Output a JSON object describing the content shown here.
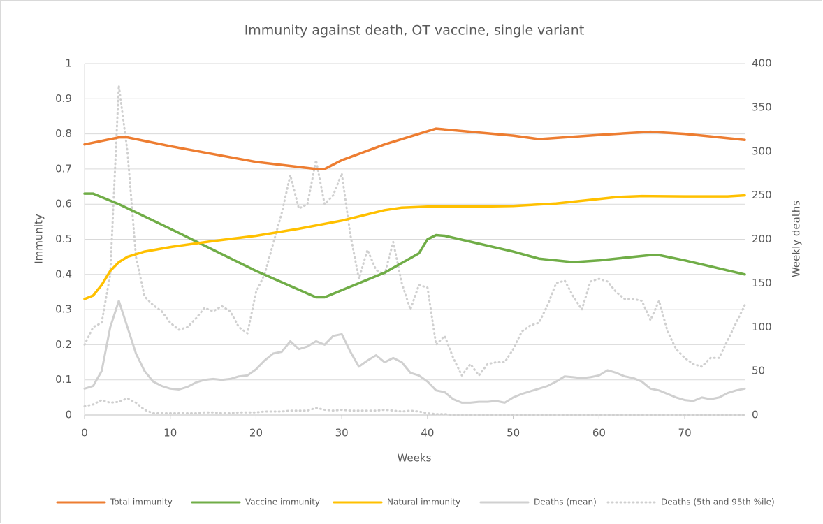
{
  "chart_data": {
    "type": "line",
    "title": "Immunity against death, OT vaccine, single variant",
    "xlabel": "Weeks",
    "ylabel": "Immunity",
    "y2label": "Weekly deaths",
    "xlim": [
      0,
      77
    ],
    "xticks": [
      0,
      10,
      20,
      30,
      40,
      50,
      60,
      70
    ],
    "ylim": [
      0,
      1
    ],
    "yticks": [
      0,
      0.1,
      0.2,
      0.3,
      0.4,
      0.5,
      0.6,
      0.7,
      0.8,
      0.9,
      1
    ],
    "y2lim": [
      0,
      400
    ],
    "y2ticks": [
      0,
      50,
      100,
      150,
      200,
      250,
      300,
      350,
      400
    ],
    "grid": true,
    "legend": "bottom",
    "x": [
      0,
      1,
      2,
      3,
      4,
      5,
      6,
      7,
      8,
      9,
      10,
      11,
      12,
      13,
      14,
      15,
      16,
      17,
      18,
      19,
      20,
      21,
      22,
      23,
      24,
      25,
      26,
      27,
      28,
      29,
      30,
      31,
      32,
      33,
      34,
      35,
      36,
      37,
      38,
      39,
      40,
      41,
      42,
      43,
      44,
      45,
      46,
      47,
      48,
      49,
      50,
      51,
      52,
      53,
      54,
      55,
      56,
      57,
      58,
      59,
      60,
      61,
      62,
      63,
      64,
      65,
      66,
      67,
      68,
      69,
      70,
      71,
      72,
      73,
      74,
      75,
      76,
      77
    ],
    "series": [
      {
        "name": "Total immunity",
        "color": "#ed7d31",
        "x": [
          0,
          2,
          4,
          5,
          10,
          20,
          27,
          28,
          30,
          35,
          39,
          41,
          50,
          53,
          60,
          66,
          70,
          77
        ],
        "values": [
          0.77,
          0.78,
          0.79,
          0.79,
          0.765,
          0.72,
          0.7,
          0.7,
          0.725,
          0.77,
          0.8,
          0.815,
          0.795,
          0.785,
          0.797,
          0.806,
          0.8,
          0.783
        ]
      },
      {
        "name": "Vaccine immunity",
        "color": "#70ad47",
        "x": [
          0,
          1,
          2,
          4,
          10,
          20,
          27,
          28,
          30,
          35,
          39,
          40,
          41,
          42,
          50,
          53,
          57,
          60,
          66,
          67,
          70,
          77
        ],
        "values": [
          0.63,
          0.63,
          0.62,
          0.6,
          0.53,
          0.41,
          0.335,
          0.335,
          0.355,
          0.405,
          0.46,
          0.5,
          0.512,
          0.51,
          0.465,
          0.445,
          0.435,
          0.44,
          0.455,
          0.455,
          0.44,
          0.4
        ]
      },
      {
        "name": "Natural immunity",
        "color": "#ffc000",
        "x": [
          0,
          1,
          2,
          3,
          4,
          5,
          7,
          10,
          15,
          20,
          25,
          30,
          32,
          35,
          37,
          40,
          45,
          50,
          55,
          60,
          62,
          65,
          70,
          75,
          77
        ],
        "values": [
          0.33,
          0.34,
          0.37,
          0.41,
          0.435,
          0.45,
          0.465,
          0.478,
          0.495,
          0.51,
          0.53,
          0.553,
          0.565,
          0.583,
          0.59,
          0.593,
          0.593,
          0.595,
          0.602,
          0.615,
          0.62,
          0.623,
          0.622,
          0.622,
          0.625
        ]
      },
      {
        "name": "Deaths (mean)",
        "color": "#d0d0d0",
        "axis": "y2",
        "values": [
          30,
          33,
          50,
          100,
          130,
          100,
          70,
          50,
          38,
          33,
          30,
          29,
          32,
          37,
          40,
          41,
          40,
          41,
          44,
          45,
          52,
          62,
          70,
          72,
          84,
          75,
          78,
          84,
          80,
          90,
          92,
          72,
          55,
          62,
          68,
          60,
          65,
          60,
          48,
          45,
          38,
          28,
          26,
          18,
          14,
          14,
          15,
          15,
          16,
          14,
          20,
          24,
          27,
          30,
          33,
          38,
          44,
          43,
          42,
          43,
          45,
          51,
          48,
          44,
          42,
          38,
          30,
          28,
          24,
          20,
          17,
          16,
          20,
          18,
          20,
          25,
          28,
          30
        ]
      },
      {
        "name": "Deaths (5th and 95th %ile)",
        "color": "#d0d0d0",
        "axis": "y2",
        "dash": true,
        "upper": [
          80,
          100,
          105,
          160,
          375,
          300,
          180,
          135,
          125,
          118,
          105,
          97,
          100,
          110,
          122,
          118,
          124,
          118,
          100,
          93,
          140,
          160,
          195,
          230,
          273,
          235,
          240,
          290,
          240,
          250,
          275,
          205,
          155,
          188,
          165,
          160,
          197,
          150,
          120,
          148,
          145,
          80,
          90,
          65,
          45,
          58,
          45,
          58,
          60,
          60,
          75,
          95,
          102,
          105,
          125,
          150,
          153,
          135,
          120,
          152,
          155,
          152,
          140,
          132,
          132,
          130,
          108,
          130,
          95,
          75,
          65,
          58,
          55,
          65,
          65,
          85,
          105,
          125
        ],
        "lower": [
          10,
          12,
          17,
          14,
          15,
          19,
          14,
          6,
          2,
          2,
          2,
          2,
          2,
          2,
          3,
          3,
          2,
          2,
          3,
          3,
          3,
          4,
          4,
          4,
          5,
          5,
          5,
          8,
          6,
          5,
          6,
          5,
          5,
          5,
          5,
          6,
          5,
          4,
          5,
          4,
          2,
          1,
          1,
          0,
          0,
          0,
          0,
          0,
          0,
          0,
          0,
          0,
          0,
          0,
          0,
          0,
          0,
          0,
          0,
          0,
          0,
          0,
          0,
          0,
          0,
          0,
          0,
          0,
          0,
          0,
          0,
          0,
          0,
          0,
          0,
          0,
          0,
          0
        ]
      }
    ]
  }
}
